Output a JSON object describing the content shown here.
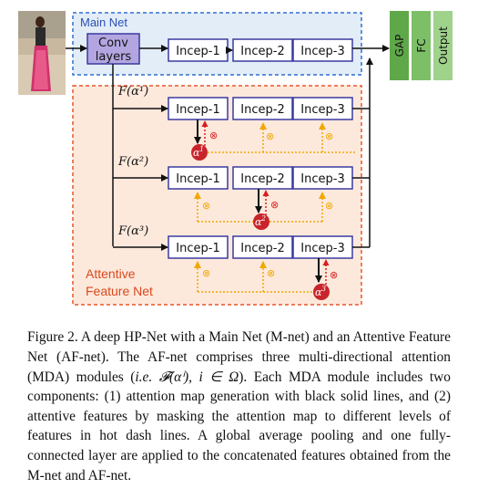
{
  "diagram": {
    "main_net_label": "Main Net",
    "af_net_label_line1": "Attentive",
    "af_net_label_line2": "Feature Net",
    "conv_line1": "Conv",
    "conv_line2": "layers",
    "incep1": "Incep-1",
    "incep2": "Incep-2",
    "incep3": "Incep-3",
    "gap": "GAP",
    "fc": "FC",
    "output": "Output",
    "f_alpha1": "F(α¹)",
    "f_alpha2": "F(α²)",
    "f_alpha3": "F(α³)",
    "otimes": "⊗",
    "alpha_sup1": "1",
    "alpha_sup2": "2",
    "alpha_sup3": "3",
    "colors": {
      "main_net_bg": "#e3edf8",
      "main_net_border": "#2f6fd0",
      "af_net_bg": "#fde9dc",
      "af_net_border": "#e8552a",
      "conv_fill": "#b3a6e0",
      "incep_border": "#3a3aa0",
      "green_dark": "#5fa84a",
      "green_light": "#9fd28b",
      "attention_node": "#c9242b",
      "dash_orange": "#f0a800",
      "person_image": "picture"
    }
  },
  "caption": {
    "label": "Figure 2.",
    "t1": " A deep HP-Net with a Main Net (M-net) and an Attentive Feature Net (AF-net). The AF-net comprises three multi-directional attention (MDA) modules (",
    "ie": "i.e.",
    "math": " 𝓕(αⁱ), i ∈ Ω",
    "t2": "). Each MDA module includes two components: (1) attention map generation with black solid lines, and (2) attentive features by masking the attention map to different levels of features in hot dash lines. A global average pooling and one fully-connected layer are applied to the concatenated features obtained from the M-net and AF-net."
  }
}
